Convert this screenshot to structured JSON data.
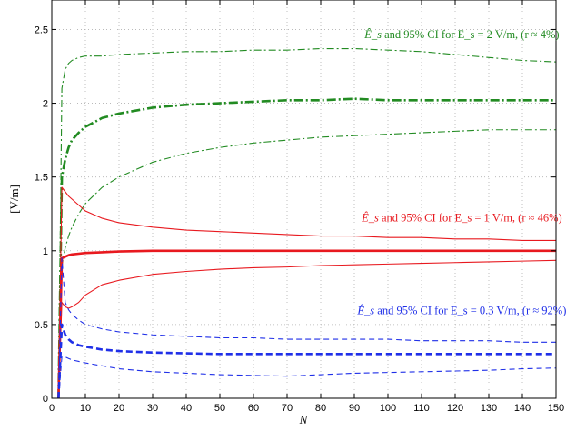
{
  "chart_data": {
    "type": "line",
    "title": "",
    "xlabel": "N",
    "ylabel": "[V/m]",
    "xlim": [
      0,
      150
    ],
    "ylim": [
      0,
      2.7
    ],
    "grid": true,
    "xticks": [
      0,
      10,
      20,
      30,
      40,
      50,
      60,
      70,
      80,
      90,
      100,
      110,
      120,
      130,
      140,
      150
    ],
    "yticks": [
      0,
      0.5,
      1,
      1.5,
      2,
      2.5
    ],
    "ytick_labels": [
      "0",
      "0.5",
      "1",
      "1.5",
      "2",
      "2.5"
    ],
    "groups": [
      {
        "color": "#228b22",
        "dash": "dashdot",
        "annotation": {
          "estimator": "Ê_s",
          "text": " and 95% CI for E_s = 2 V/m, (r ≈ 4%)",
          "x": 122,
          "y": 2.44
        },
        "series": [
          {
            "role": "upper",
            "x": [
              2,
              3,
              4,
              5,
              6,
              8,
              10,
              15,
              20,
              30,
              40,
              50,
              60,
              70,
              80,
              90,
              100,
              110,
              120,
              130,
              140,
              150
            ],
            "y": [
              0,
              2.1,
              2.23,
              2.27,
              2.29,
              2.31,
              2.32,
              2.32,
              2.33,
              2.34,
              2.35,
              2.35,
              2.36,
              2.36,
              2.37,
              2.37,
              2.36,
              2.35,
              2.33,
              2.31,
              2.29,
              2.28
            ]
          },
          {
            "role": "estimate",
            "x": [
              2,
              3,
              4,
              5,
              6,
              8,
              10,
              15,
              20,
              30,
              40,
              50,
              60,
              70,
              80,
              90,
              100,
              110,
              120,
              130,
              140,
              150
            ],
            "y": [
              0,
              1.5,
              1.62,
              1.7,
              1.75,
              1.8,
              1.84,
              1.9,
              1.93,
              1.97,
              1.99,
              2.0,
              2.01,
              2.02,
              2.02,
              2.03,
              2.02,
              2.02,
              2.02,
              2.02,
              2.02,
              2.02
            ]
          },
          {
            "role": "lower",
            "x": [
              2,
              3,
              4,
              5,
              6,
              8,
              10,
              15,
              20,
              30,
              40,
              50,
              60,
              70,
              80,
              90,
              100,
              110,
              120,
              130,
              140,
              150
            ],
            "y": [
              0,
              0.9,
              1.02,
              1.1,
              1.16,
              1.25,
              1.32,
              1.43,
              1.5,
              1.6,
              1.66,
              1.7,
              1.73,
              1.75,
              1.77,
              1.78,
              1.79,
              1.8,
              1.81,
              1.82,
              1.82,
              1.82
            ]
          }
        ]
      },
      {
        "color": "#e8191f",
        "dash": "solid",
        "annotation": {
          "estimator": "Ê_s",
          "text": " and 95% CI for E_s = 1 V/m, (r ≈ 46%)",
          "x": 122,
          "y": 1.2
        },
        "series": [
          {
            "role": "upper",
            "x": [
              2,
              3,
              4,
              5,
              6,
              8,
              10,
              15,
              20,
              30,
              40,
              50,
              60,
              70,
              80,
              90,
              100,
              110,
              120,
              130,
              140,
              150
            ],
            "y": [
              0,
              1.43,
              1.4,
              1.37,
              1.35,
              1.31,
              1.27,
              1.22,
              1.19,
              1.16,
              1.14,
              1.13,
              1.12,
              1.11,
              1.1,
              1.1,
              1.09,
              1.09,
              1.08,
              1.08,
              1.07,
              1.07
            ]
          },
          {
            "role": "estimate",
            "x": [
              2,
              3,
              4,
              5,
              6,
              8,
              10,
              15,
              20,
              30,
              40,
              50,
              60,
              70,
              80,
              90,
              100,
              110,
              120,
              130,
              140,
              150
            ],
            "y": [
              0,
              0.95,
              0.96,
              0.97,
              0.975,
              0.98,
              0.985,
              0.99,
              0.995,
              1.0,
              1.0,
              1.0,
              1.0,
              1.0,
              1.0,
              1.0,
              1.0,
              1.0,
              1.0,
              1.0,
              1.0,
              1.0
            ]
          },
          {
            "role": "lower",
            "x": [
              2,
              3,
              4,
              5,
              6,
              8,
              10,
              15,
              20,
              30,
              40,
              50,
              60,
              70,
              80,
              90,
              100,
              110,
              120,
              130,
              140,
              150
            ],
            "y": [
              0,
              0.65,
              0.62,
              0.61,
              0.62,
              0.65,
              0.7,
              0.77,
              0.8,
              0.84,
              0.86,
              0.875,
              0.885,
              0.89,
              0.9,
              0.905,
              0.91,
              0.915,
              0.92,
              0.925,
              0.93,
              0.935
            ]
          }
        ]
      },
      {
        "color": "#1f2fe8",
        "dash": "dashed",
        "annotation": {
          "estimator": "Ê_s",
          "text": " and 95% CI for E_s = 0.3 V/m, (r ≈ 92%)",
          "x": 122,
          "y": 0.57
        },
        "series": [
          {
            "role": "upper",
            "x": [
              2,
              3,
              4,
              5,
              6,
              8,
              10,
              15,
              20,
              30,
              40,
              50,
              60,
              70,
              80,
              90,
              100,
              110,
              120,
              130,
              140,
              150
            ],
            "y": [
              0,
              0.95,
              0.65,
              0.6,
              0.57,
              0.53,
              0.5,
              0.47,
              0.45,
              0.43,
              0.42,
              0.41,
              0.41,
              0.4,
              0.4,
              0.4,
              0.4,
              0.39,
              0.39,
              0.39,
              0.38,
              0.38
            ]
          },
          {
            "role": "estimate",
            "x": [
              2,
              3,
              4,
              5,
              6,
              8,
              10,
              15,
              20,
              30,
              40,
              50,
              60,
              70,
              80,
              90,
              100,
              110,
              120,
              130,
              140,
              150
            ],
            "y": [
              0,
              0.5,
              0.43,
              0.4,
              0.38,
              0.36,
              0.35,
              0.33,
              0.32,
              0.31,
              0.305,
              0.3,
              0.3,
              0.3,
              0.3,
              0.3,
              0.3,
              0.3,
              0.3,
              0.3,
              0.3,
              0.3
            ]
          },
          {
            "role": "lower",
            "x": [
              2,
              3,
              4,
              5,
              6,
              8,
              10,
              15,
              20,
              30,
              40,
              50,
              60,
              70,
              80,
              90,
              100,
              110,
              120,
              130,
              140,
              150
            ],
            "y": [
              0,
              0.28,
              0.28,
              0.27,
              0.26,
              0.25,
              0.24,
              0.22,
              0.2,
              0.18,
              0.17,
              0.16,
              0.155,
              0.15,
              0.16,
              0.17,
              0.175,
              0.18,
              0.185,
              0.19,
              0.2,
              0.205
            ]
          }
        ]
      }
    ]
  }
}
